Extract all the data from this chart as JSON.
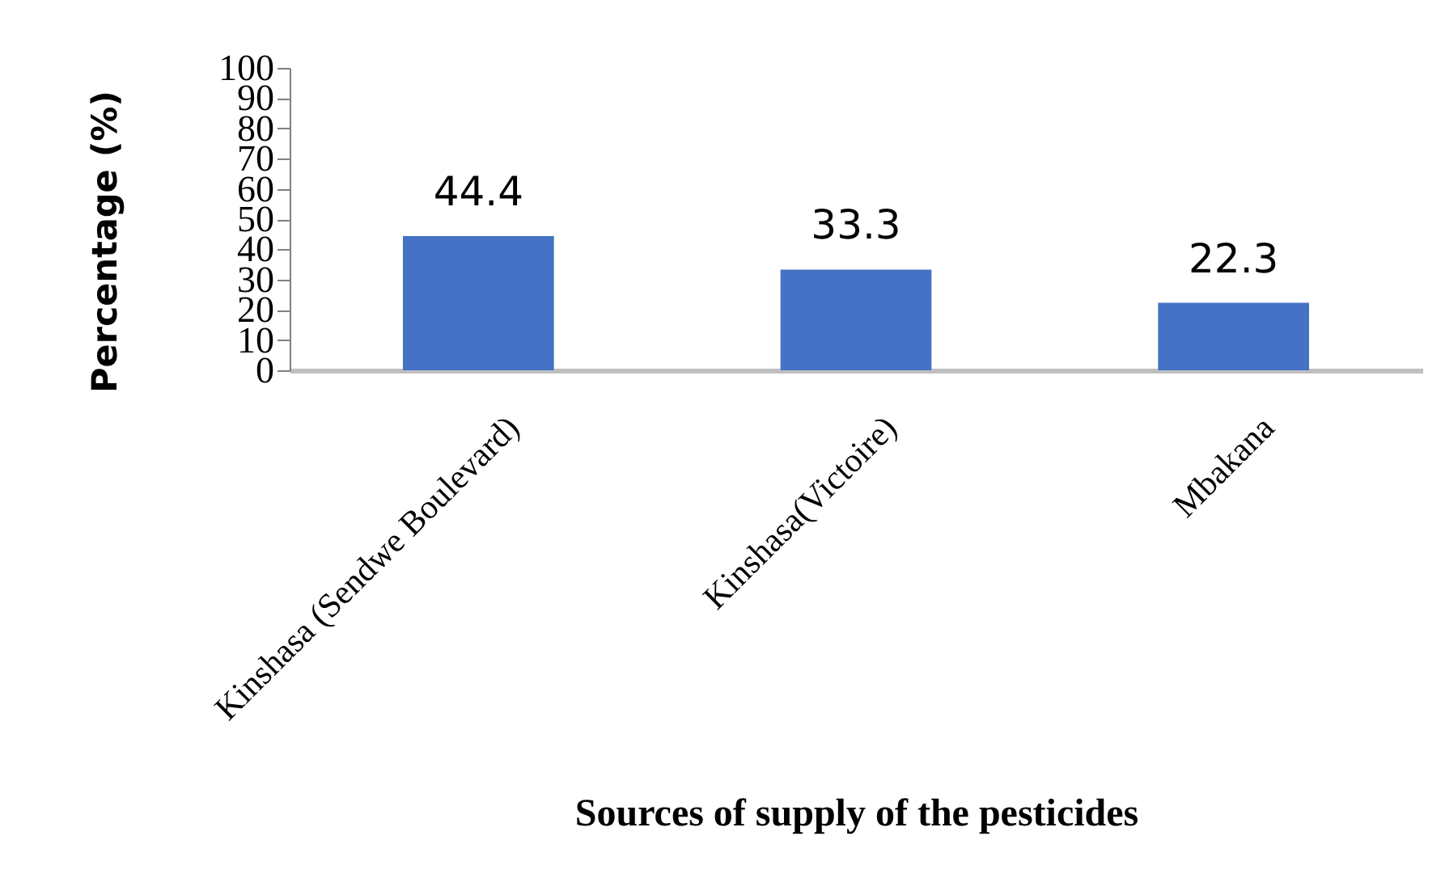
{
  "chart_data": {
    "type": "bar",
    "xlabel": "Sources of supply of the pesticides",
    "ylabel": "Percentage (%)",
    "categories": [
      "Kinshasa (Sendwe Boulevard)",
      "Kinshasa(Victoire)",
      "Mbakana"
    ],
    "values": [
      44.4,
      33.3,
      22.3
    ],
    "color": "#4472c4",
    "ylim": [
      0,
      100
    ],
    "yticks": [
      0,
      10,
      20,
      30,
      40,
      50,
      60,
      70,
      80,
      90,
      100
    ],
    "data_labels": true
  }
}
